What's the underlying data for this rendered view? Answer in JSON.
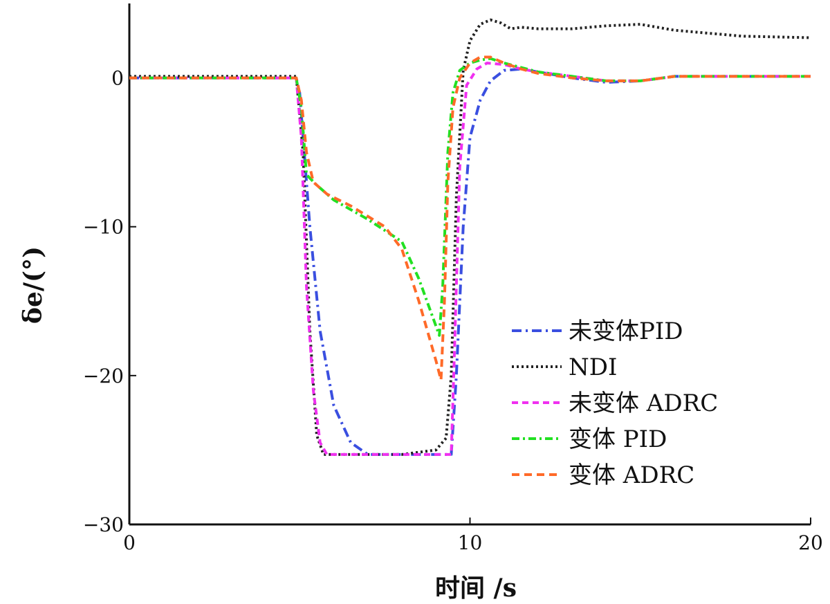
{
  "chart_data": {
    "type": "line",
    "xlabel": "时间 /s",
    "ylabel": "δe/(°)",
    "xlim": [
      0,
      20
    ],
    "ylim": [
      -30,
      5
    ],
    "xticks": [
      0,
      10,
      20
    ],
    "yticks": [
      0,
      -10,
      -20,
      -30
    ],
    "xtick_labels": [
      "0",
      "10",
      "20"
    ],
    "ytick_labels": [
      "0",
      "−10",
      "−20",
      "−30"
    ],
    "grid": false,
    "legend_position": "bottom-right",
    "series": [
      {
        "name": "未变体PID",
        "color": "#3a4fe0",
        "dash": "14,6,3,6",
        "x": [
          0,
          4.9,
          5.0,
          5.3,
          5.6,
          6.0,
          6.5,
          7.0,
          7.3,
          9.2,
          9.45,
          9.6,
          9.8,
          10.0,
          10.3,
          10.6,
          11.0,
          11.5,
          12.0,
          13.0,
          14.0,
          15.0,
          16.0,
          17.0,
          18.0,
          20.0
        ],
        "y": [
          0,
          0,
          -1,
          -10,
          -17,
          -22,
          -24.5,
          -25.3,
          -25.3,
          -25.3,
          -25.3,
          -20,
          -10,
          -4,
          -1.5,
          -0.2,
          0.5,
          0.6,
          0.4,
          0,
          -0.3,
          -0.2,
          0.1,
          0.1,
          0.1,
          0.1
        ]
      },
      {
        "name": "NDI",
        "color": "#222222",
        "dash": "3,4",
        "x": [
          0,
          4.9,
          5.1,
          5.3,
          5.5,
          5.7,
          6.0,
          6.5,
          7.0,
          8.0,
          9.0,
          9.3,
          9.45,
          9.6,
          9.8,
          10.0,
          10.3,
          10.6,
          10.9,
          11.2,
          11.5,
          12.0,
          13.0,
          14.0,
          15.0,
          16.0,
          17.0,
          18.0,
          20.0
        ],
        "y": [
          0.1,
          0.1,
          -5,
          -17,
          -24,
          -25.3,
          -25.3,
          -25.3,
          -25.3,
          -25.3,
          -25.0,
          -24.2,
          -20,
          -8,
          0.5,
          2.5,
          3.6,
          3.9,
          3.7,
          3.3,
          3.4,
          3.3,
          3.3,
          3.5,
          3.6,
          3.2,
          3.0,
          2.8,
          2.7
        ]
      },
      {
        "name": "未变体 ADRC",
        "color": "#f030f0",
        "dash": "9,6",
        "x": [
          0,
          4.9,
          5.05,
          5.2,
          5.4,
          5.6,
          5.8,
          6.0,
          9.0,
          9.3,
          9.45,
          9.55,
          9.7,
          9.9,
          10.2,
          10.5,
          11.0,
          11.5,
          12.0,
          13.0,
          14.0,
          15.0,
          16.0,
          17.0,
          18.0,
          20.0
        ],
        "y": [
          0,
          0,
          -4,
          -14,
          -21,
          -24.5,
          -25.3,
          -25.3,
          -25.3,
          -25.3,
          -25.3,
          -18,
          -6,
          -0.5,
          0.6,
          1.0,
          0.9,
          0.6,
          0.4,
          0.1,
          -0.2,
          -0.2,
          0.1,
          0.1,
          0.1,
          0.1
        ]
      },
      {
        "name": "变体 PID",
        "color": "#22e022",
        "dash": "11,5,3,5",
        "x": [
          0,
          4.9,
          5.05,
          5.2,
          5.5,
          6.0,
          7.0,
          8.0,
          8.5,
          9.1,
          9.2,
          9.35,
          9.5,
          9.7,
          10.0,
          10.3,
          10.6,
          11.0,
          11.5,
          12.0,
          13.0,
          14.0,
          15.0,
          16.0,
          17.0,
          18.0,
          20.0
        ],
        "y": [
          0,
          0,
          -2,
          -6.5,
          -7.2,
          -8.2,
          -9.5,
          -11,
          -13.5,
          -17.3,
          -14,
          -5,
          -1,
          0.5,
          1.0,
          1.2,
          1.3,
          1.0,
          0.7,
          0.4,
          0.1,
          -0.2,
          -0.2,
          0.1,
          0.1,
          0.1,
          0.1
        ]
      },
      {
        "name": "变体 ADRC",
        "color": "#ff6a28",
        "dash": "11,7",
        "x": [
          0,
          4.9,
          5.05,
          5.2,
          5.4,
          5.8,
          6.5,
          7.5,
          8.0,
          8.5,
          9.0,
          9.15,
          9.25,
          9.35,
          9.5,
          9.7,
          10.0,
          10.3,
          10.6,
          11.0,
          11.5,
          12.0,
          13.0,
          14.0,
          15.0,
          16.0,
          17.0,
          18.0,
          20.0
        ],
        "y": [
          0,
          0,
          -1.5,
          -5,
          -7,
          -7.8,
          -8.6,
          -10,
          -11.5,
          -15,
          -19,
          -20.3,
          -15,
          -7,
          -2,
          0,
          1.0,
          1.4,
          1.4,
          1.0,
          0.6,
          0.3,
          0,
          -0.2,
          -0.2,
          0.1,
          0.1,
          0.1,
          0.1
        ]
      }
    ]
  }
}
